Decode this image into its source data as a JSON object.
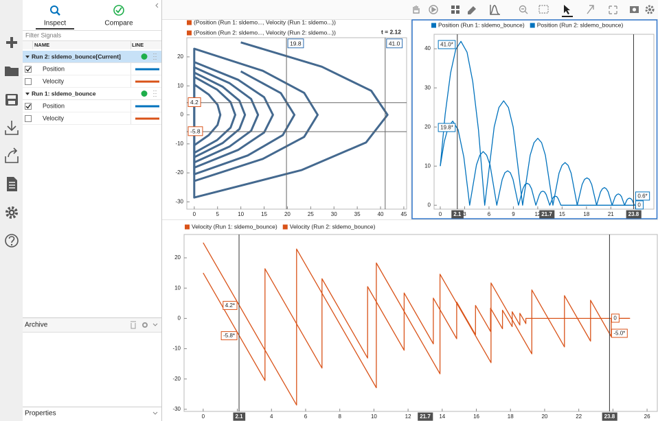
{
  "sidebar": {
    "tabs": [
      "Inspect",
      "Compare"
    ],
    "filter_placeholder": "Filter Signals",
    "columns": [
      "NAME",
      "LINE"
    ],
    "runs": [
      {
        "name": "Run 2: sldemo_bounce[Current]",
        "selected": true,
        "signals": [
          {
            "name": "Position",
            "checked": true,
            "color": "#0072bd"
          },
          {
            "name": "Velocity",
            "checked": false,
            "color": "#d95319"
          }
        ]
      },
      {
        "name": "Run 1: sldemo_bounce",
        "selected": false,
        "signals": [
          {
            "name": "Position",
            "checked": true,
            "color": "#0072bd"
          },
          {
            "name": "Velocity",
            "checked": false,
            "color": "#d95319"
          }
        ]
      }
    ],
    "archive": "Archive",
    "properties": "Properties"
  },
  "chart_data": [
    {
      "type": "line",
      "time_label": "t = 2.12",
      "series": [
        {
          "name": "(Position (Run 1: sldemo..., Velocity (Run 1: sldemo...))",
          "color": "#44698f",
          "legend_color": "#d95319",
          "x": [
            10,
            18.6,
            21.5,
            19,
            11.5,
            0,
            0,
            7.6,
            12.2,
            13.7,
            12.2,
            7.6,
            0,
            0,
            4.9,
            7.8,
            8.8,
            7.8,
            4.9,
            0,
            0,
            3.1,
            5,
            5.6,
            5,
            3.1,
            0
          ],
          "values": [
            15,
            7.5,
            0,
            -7,
            -14,
            -20.5,
            16.4,
            10.9,
            5.5,
            0,
            -5.5,
            -10.9,
            -16.4,
            13.1,
            8.7,
            4.4,
            0,
            -4.4,
            -8.7,
            -13.1,
            10.5,
            7,
            3.5,
            0,
            -3.5,
            -7,
            -10.5
          ]
        },
        {
          "name": "(Position (Run 2: sldemo..., Velocity (Run 2: sldemo...))",
          "color": "#44698f",
          "legend_color": "#d95319",
          "x": [
            10,
            27.4,
            38,
            41.5,
            36.9,
            23.1,
            0,
            0,
            14.7,
            23.6,
            26.5,
            23.6,
            14.7,
            0,
            0,
            9.4,
            15,
            16.9,
            15,
            9.4,
            0,
            0,
            6.1,
            9.7,
            10.9,
            9.7,
            6.1,
            0
          ],
          "values": [
            25,
            16.6,
            8.3,
            0,
            -9.5,
            -19,
            -28.5,
            22.8,
            15.2,
            7.6,
            0,
            -7.6,
            -15.2,
            -22.8,
            18.2,
            12.1,
            6.1,
            0,
            -6.1,
            -12.1,
            -18.2,
            14.6,
            9.7,
            4.9,
            0,
            -4.9,
            -9.7,
            -14.6
          ]
        }
      ],
      "xlim": [
        -1.6,
        45.6
      ],
      "ylim": [
        -32.5,
        26.6
      ],
      "xticks": [
        0,
        5,
        10,
        15,
        20,
        25,
        30,
        35,
        40,
        45
      ],
      "yticks": [
        -30,
        -20,
        -10,
        0,
        10,
        20
      ],
      "cursors_x": [
        19.8,
        {
          "value": 41,
          "label": "41.0"
        }
      ],
      "cursors_y": [
        4.2,
        -5.8
      ]
    },
    {
      "type": "line",
      "series": [
        {
          "name": "Position (Run 1: sldemo_bounce)",
          "color": "#0072bd",
          "x": [
            0,
            0.5,
            1,
            1.53,
            2.2,
            2.9,
            3.62,
            4.46,
            4.87,
            5.29,
            5.71,
            6.13,
            6.96,
            7.63,
            7.96,
            8.3,
            8.63,
            8.96,
            9.63,
            10.17,
            10.43,
            10.7,
            10.97,
            11.24,
            11.77,
            12.2,
            12.41,
            12.63,
            12.84,
            13.05,
            13.48,
            13.82,
            13.99,
            14.17,
            14.34,
            14.51,
            14.85,
            25
          ],
          "values": [
            10,
            16.3,
            20.1,
            21.5,
            19.3,
            12.3,
            0,
            10.3,
            12.8,
            13.7,
            12.8,
            10.3,
            0,
            6.6,
            8.3,
            8.8,
            8.3,
            6.6,
            0,
            4.2,
            5.3,
            5.6,
            5.3,
            4.2,
            0,
            2.7,
            3.4,
            3.6,
            3.4,
            2.7,
            0,
            1.7,
            2.2,
            2.3,
            2.2,
            1.7,
            0,
            0
          ]
        },
        {
          "name": "Position (Run 2: sldemo_bounce)",
          "color": "#0072bd",
          "x": [
            0,
            0.6,
            1.27,
            1.9,
            2.55,
            3.3,
            4,
            4.7,
            5.47,
            6.64,
            7.22,
            7.81,
            8.39,
            8.97,
            10.14,
            11.07,
            11.54,
            12.01,
            12.47,
            12.94,
            13.87,
            14.62,
            14.99,
            15.37,
            15.74,
            16.11,
            16.86,
            17.46,
            17.76,
            18.06,
            18.35,
            18.65,
            19.25,
            19.73,
            19.97,
            20.21,
            20.44,
            20.68,
            21.16,
            21.54,
            21.73,
            21.93,
            22.12,
            22.31,
            22.69,
            22.99,
            23.15,
            23.3,
            23.45,
            23.6,
            23.9,
            25
          ],
          "values": [
            10,
            23.2,
            33.8,
            39.8,
            41.9,
            39.1,
            31.6,
            19.3,
            0,
            20,
            25,
            26.7,
            25,
            20,
            0,
            12.8,
            16,
            17.1,
            16,
            12.8,
            0,
            8.2,
            10.2,
            10.9,
            10.2,
            8.2,
            0,
            5.3,
            6.6,
            7,
            6.6,
            5.3,
            0,
            3.4,
            4.2,
            4.5,
            4.2,
            3.4,
            0,
            2.2,
            2.7,
            2.9,
            2.7,
            2.2,
            0,
            1.4,
            1.7,
            1.8,
            1.7,
            1.4,
            0,
            0
          ]
        }
      ],
      "xlim": [
        -0.76,
        26.3
      ],
      "ylim": [
        -1,
        43.7
      ],
      "xticks": [
        0,
        3,
        6,
        9,
        12,
        15,
        18,
        21,
        24
      ],
      "yticks": [
        0,
        10,
        20,
        30,
        40
      ],
      "cursors": [
        {
          "x": 2.1,
          "readouts": [
            {
              "value": 41,
              "label": "41.0*"
            },
            {
              "value": 19.8,
              "label": "19.8*"
            }
          ]
        },
        {
          "x": 23.8,
          "readouts": [
            {
              "value": 0.6,
              "label": "0.6*"
            },
            0
          ]
        }
      ],
      "cursor_time": "21.7"
    },
    {
      "type": "line",
      "series": [
        {
          "name": "Velocity (Run 1: sldemo_bounce)",
          "color": "#d95319",
          "x": [
            0,
            3.62,
            3.62,
            6.96,
            6.96,
            9.63,
            9.63,
            11.77,
            11.77,
            13.48,
            13.48,
            14.85,
            14.85,
            15.95,
            15.95,
            16.83,
            16.83,
            17.53,
            17.53,
            18.1,
            18.1,
            18.55,
            18.55,
            18.9,
            18.9,
            25
          ],
          "values": [
            15,
            -20.5,
            16.4,
            -16.4,
            13.1,
            -13.1,
            10.5,
            -10.5,
            8.4,
            -8.4,
            6.7,
            -6.7,
            5.4,
            -5.4,
            4.3,
            -4.3,
            3.4,
            -3.4,
            2.7,
            -2.7,
            2.2,
            -2.2,
            1.7,
            -1.7,
            0,
            0
          ]
        },
        {
          "name": "Velocity (Run 2: sldemo_bounce)",
          "color": "#d95319",
          "x": [
            0,
            5.47,
            5.47,
            10.14,
            10.14,
            13.87,
            13.87,
            16.86,
            16.86,
            19.25,
            19.25,
            21.16,
            21.16,
            22.69,
            22.69,
            23.9,
            23.9,
            25
          ],
          "values": [
            25,
            -28.6,
            22.9,
            -22.9,
            18.3,
            -18.3,
            14.6,
            -14.6,
            11.7,
            -11.7,
            9.4,
            -9.4,
            7.5,
            -7.5,
            6,
            -6,
            0,
            0
          ]
        }
      ],
      "xlim": [
        -1.12,
        26.6
      ],
      "ylim": [
        -30.7,
        27.7
      ],
      "xticks": [
        0,
        2,
        4,
        6,
        8,
        10,
        12,
        14,
        16,
        18,
        20,
        22,
        24,
        26
      ],
      "yticks": [
        -30,
        -20,
        -10,
        0,
        10,
        20
      ],
      "cursors": [
        {
          "x": 2.1,
          "readouts": [
            {
              "value": 4.2,
              "label": "4.2*"
            },
            {
              "value": -5.8,
              "label": "-5.8*"
            }
          ]
        },
        {
          "x": 23.8,
          "readouts": [
            0,
            {
              "value": -5,
              "label": "-5.0*"
            }
          ]
        }
      ],
      "cursor_time": "21.7"
    }
  ]
}
